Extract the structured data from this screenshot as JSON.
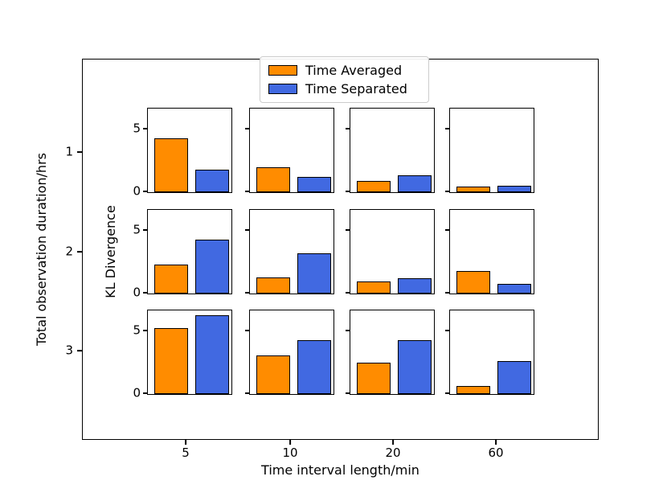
{
  "axes": {
    "outer": {
      "xlabel": "Time interval length/min",
      "ylabel": "Total observation duration/hrs",
      "xticks": [
        "5",
        "10",
        "20",
        "60"
      ],
      "yticks": [
        "1",
        "2",
        "3"
      ]
    },
    "inner": {
      "ylabel": "KL Divergence",
      "yticks": [
        "0",
        "5"
      ]
    }
  },
  "legend": {
    "items": [
      {
        "label": "Time Averaged",
        "color": "#FF8C00"
      },
      {
        "label": "Time Separated",
        "color": "#4169E1"
      }
    ],
    "edge_color": "#000000"
  },
  "chart_data": {
    "type": "bar",
    "layout": "3x4 grid of two-bar subplots sharing y scale",
    "series_names": [
      "Time Averaged",
      "Time Separated"
    ],
    "series_colors": [
      "#FF8C00",
      "#4169E1"
    ],
    "row_variable": "Total observation duration/hrs",
    "row_categories": [
      1,
      2,
      3
    ],
    "col_variable": "Time interval length/min",
    "col_categories": [
      5,
      10,
      20,
      60
    ],
    "ylabel": "KL Divergence",
    "yticks": [
      0,
      5
    ],
    "ylim": [
      0,
      6.6
    ],
    "legend_position": "top center",
    "rows": [
      {
        "duration_hrs": 1,
        "cells": [
          {
            "interval_min": 5,
            "time_averaged": 4.3,
            "time_separated": 1.8
          },
          {
            "interval_min": 10,
            "time_averaged": 2.0,
            "time_separated": 1.2
          },
          {
            "interval_min": 20,
            "time_averaged": 0.9,
            "time_separated": 1.35
          },
          {
            "interval_min": 60,
            "time_averaged": 0.45,
            "time_separated": 0.5
          }
        ]
      },
      {
        "duration_hrs": 2,
        "cells": [
          {
            "interval_min": 5,
            "time_averaged": 2.3,
            "time_separated": 4.3
          },
          {
            "interval_min": 10,
            "time_averaged": 1.3,
            "time_separated": 3.2
          },
          {
            "interval_min": 20,
            "time_averaged": 0.95,
            "time_separated": 1.25
          },
          {
            "interval_min": 60,
            "time_averaged": 1.8,
            "time_separated": 0.8
          }
        ]
      },
      {
        "duration_hrs": 3,
        "cells": [
          {
            "interval_min": 5,
            "time_averaged": 5.25,
            "time_separated": 6.3
          },
          {
            "interval_min": 10,
            "time_averaged": 3.1,
            "time_separated": 4.3
          },
          {
            "interval_min": 20,
            "time_averaged": 2.5,
            "time_separated": 4.3
          },
          {
            "interval_min": 60,
            "time_averaged": 0.65,
            "time_separated": 2.65
          }
        ]
      }
    ]
  }
}
